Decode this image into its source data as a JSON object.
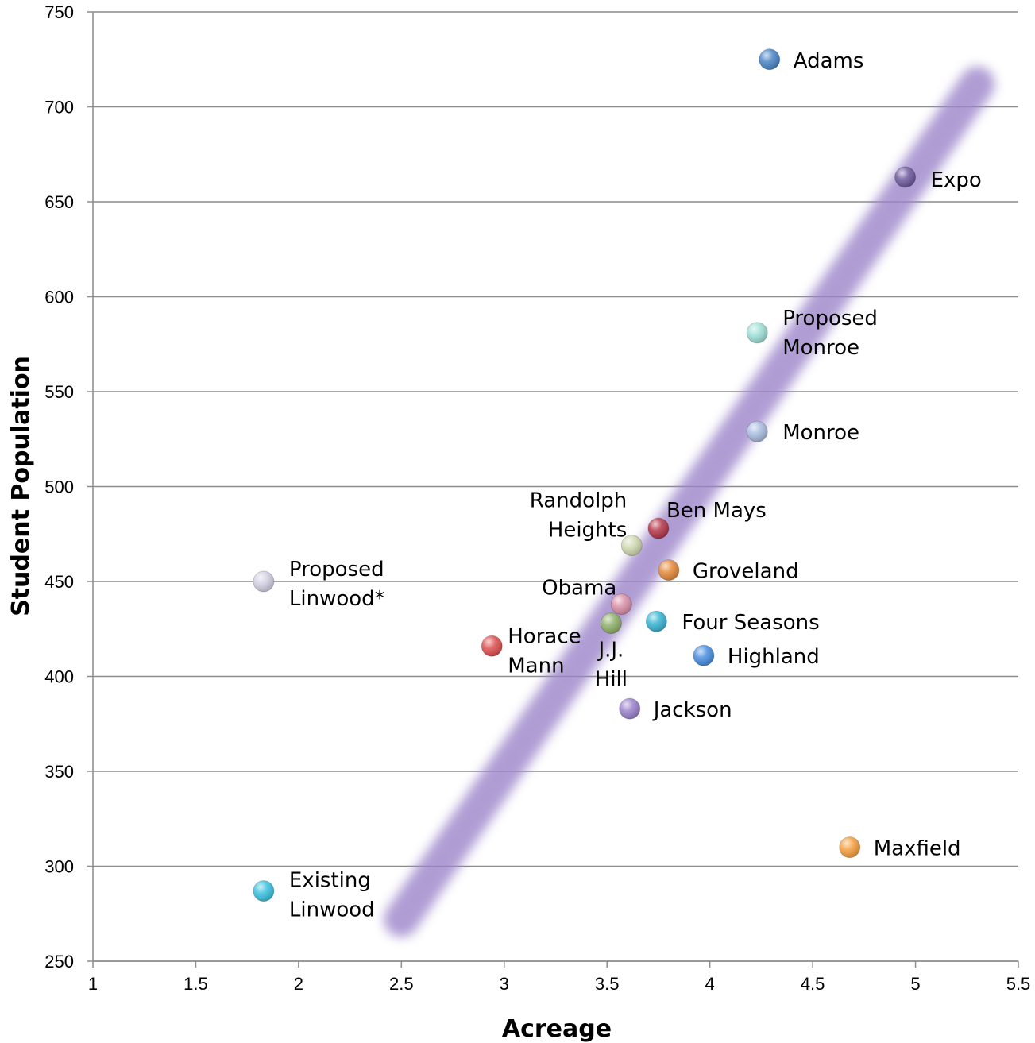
{
  "chart_data": {
    "type": "scatter",
    "title": "",
    "xlabel": "Acreage",
    "ylabel": "Student Population",
    "xlim": [
      1,
      5.5
    ],
    "ylim": [
      250,
      750
    ],
    "xticks": [
      "1",
      "1.5",
      "2",
      "2.5",
      "3",
      "3.5",
      "4",
      "4.5",
      "5",
      "5.5"
    ],
    "yticks": [
      "250",
      "300",
      "350",
      "400",
      "450",
      "500",
      "550",
      "600",
      "650",
      "700",
      "750"
    ],
    "grid": "horizontal",
    "legend": "none",
    "trend_band": {
      "from": [
        2.5,
        272
      ],
      "to": [
        5.3,
        712
      ],
      "color": "#9b84c9"
    },
    "points": [
      {
        "id": "adams",
        "lines": [
          "Adams"
        ],
        "x": 4.29,
        "y": 725,
        "color": "#4a86c8"
      },
      {
        "id": "expo",
        "lines": [
          "Expo"
        ],
        "x": 4.95,
        "y": 663,
        "color": "#6e5a9e"
      },
      {
        "id": "proposed-monroe",
        "lines": [
          "Proposed",
          "Monroe"
        ],
        "x": 4.23,
        "y": 581,
        "color": "#9fe0d8"
      },
      {
        "id": "monroe",
        "lines": [
          "Monroe"
        ],
        "x": 4.23,
        "y": 529,
        "color": "#a8bde0"
      },
      {
        "id": "ben-mays",
        "lines": [
          "Ben Mays"
        ],
        "x": 3.75,
        "y": 478,
        "color": "#b5374a"
      },
      {
        "id": "randolph-heights",
        "lines": [
          "Randolph",
          "Heights"
        ],
        "x": 3.62,
        "y": 469,
        "color": "#cfd9b0"
      },
      {
        "id": "groveland",
        "lines": [
          "Groveland"
        ],
        "x": 3.8,
        "y": 456,
        "color": "#e58a3a"
      },
      {
        "id": "proposed-linwood",
        "lines": [
          "Proposed",
          "Linwood*"
        ],
        "x": 1.83,
        "y": 450,
        "color": "#d4d0e4"
      },
      {
        "id": "obama",
        "lines": [
          "Obama"
        ],
        "x": 3.57,
        "y": 438,
        "color": "#d990a8"
      },
      {
        "id": "four-seasons",
        "lines": [
          "Four Seasons"
        ],
        "x": 3.74,
        "y": 429,
        "color": "#3bb5d4"
      },
      {
        "id": "jj-hill",
        "lines": [
          "J.J.",
          "Hill"
        ],
        "x": 3.52,
        "y": 428,
        "color": "#8fb06a"
      },
      {
        "id": "horace-mann",
        "lines": [
          "Horace",
          "Mann"
        ],
        "x": 2.94,
        "y": 416,
        "color": "#e05050"
      },
      {
        "id": "highland",
        "lines": [
          "Highland"
        ],
        "x": 3.97,
        "y": 411,
        "color": "#4a8ee0"
      },
      {
        "id": "jackson",
        "lines": [
          "Jackson"
        ],
        "x": 3.61,
        "y": 383,
        "color": "#9b82cc"
      },
      {
        "id": "maxfield",
        "lines": [
          "Maxfield"
        ],
        "x": 4.68,
        "y": 310,
        "color": "#f5a040"
      },
      {
        "id": "existing-linwood",
        "lines": [
          "Existing",
          "Linwood"
        ],
        "x": 1.83,
        "y": 287,
        "color": "#3bc3e0"
      }
    ]
  }
}
